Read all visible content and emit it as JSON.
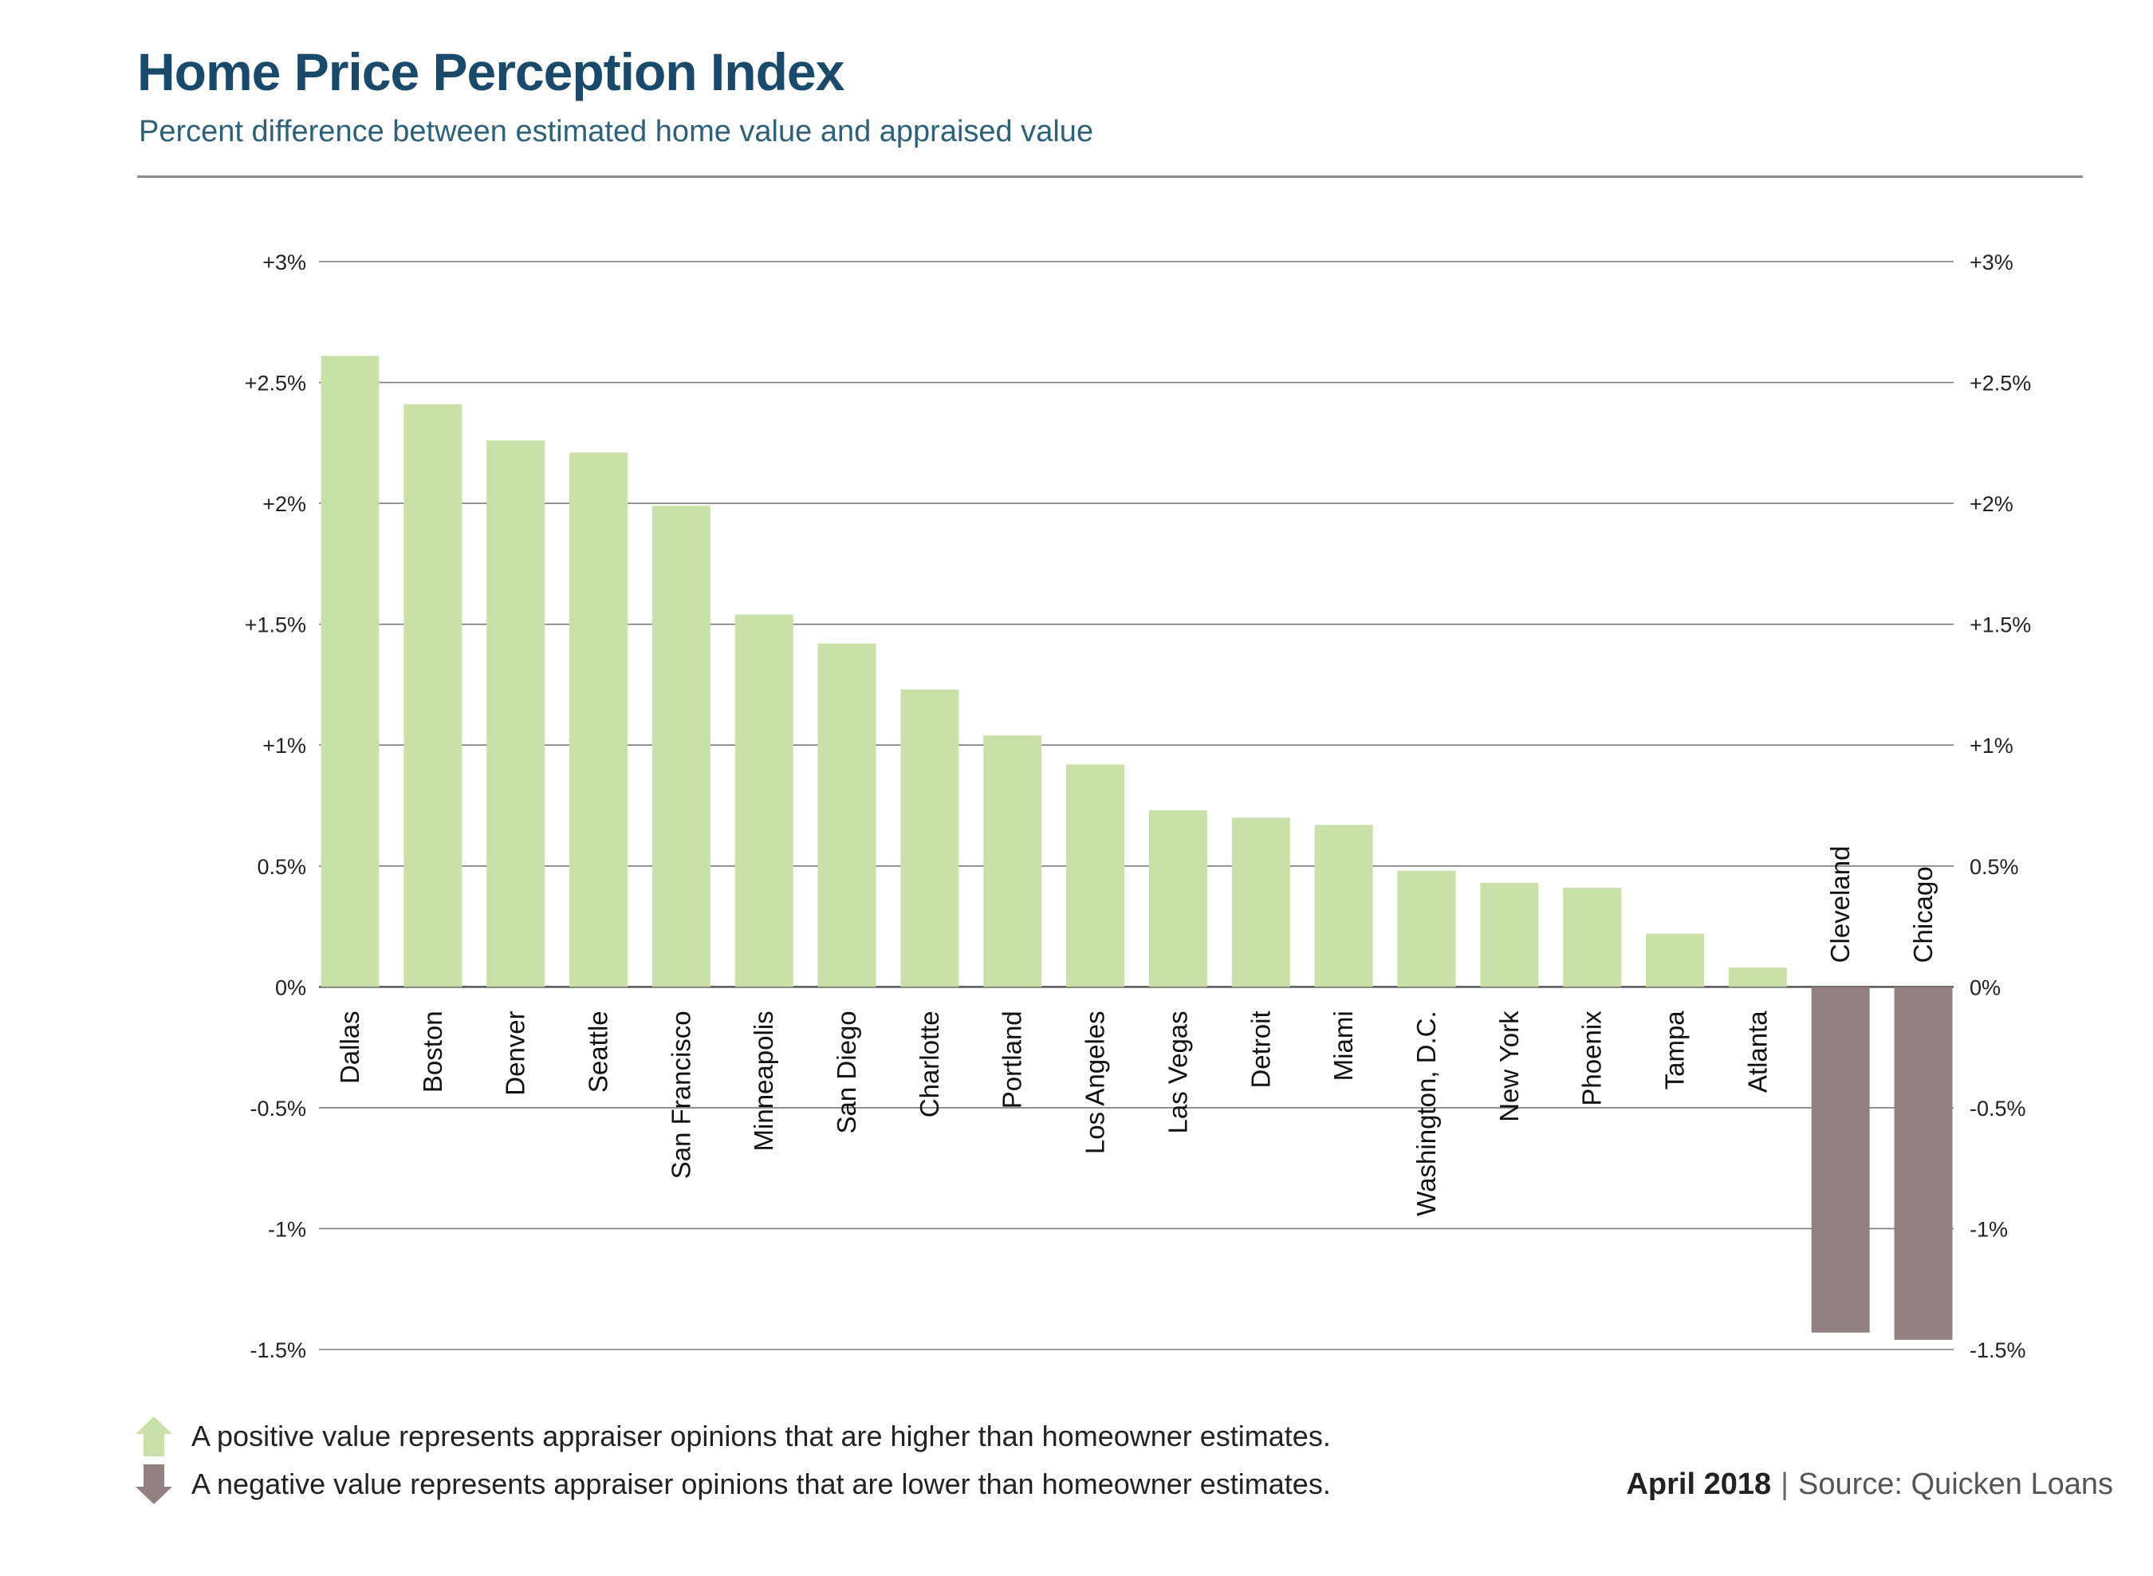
{
  "header": {
    "title": "Home Price Perception Index",
    "subtitle": "Percent difference between estimated home value and appraised value"
  },
  "legend": {
    "positive_text": "A positive value represents appraiser opinions that are higher than homeowner estimates.",
    "negative_text": "A negative value represents appraiser opinions that are lower than homeowner estimates.",
    "positive_icon": "up-arrow-icon",
    "negative_icon": "down-arrow-icon"
  },
  "footer": {
    "date": "April 2018",
    "separator": "|",
    "source": "Source: Quicken Loans"
  },
  "colors": {
    "positive": "#c9e1a8",
    "negative": "#928180",
    "title": "#1a4a6b",
    "subtitle": "#2d6079",
    "grid": "#7a7a7a"
  },
  "chart_data": {
    "type": "bar",
    "categories": [
      "Dallas",
      "Boston",
      "Denver",
      "Seattle",
      "San Francisco",
      "Minneapolis",
      "San Diego",
      "Charlotte",
      "Portland",
      "Los Angeles",
      "Las Vegas",
      "Detroit",
      "Miami",
      "Washington, D.C.",
      "New York",
      "Phoenix",
      "Tampa",
      "Atlanta",
      "Cleveland",
      "Chicago"
    ],
    "values": [
      2.61,
      2.41,
      2.26,
      2.21,
      1.99,
      1.54,
      1.42,
      1.23,
      1.04,
      0.92,
      0.73,
      0.7,
      0.67,
      0.48,
      0.43,
      0.41,
      0.22,
      0.08,
      -1.43,
      -1.46
    ],
    "ylim": [
      -1.5,
      3
    ],
    "yticks": [
      3,
      2.5,
      2,
      1.5,
      1,
      0.5,
      0,
      -0.5,
      -1,
      -1.5
    ],
    "ytick_labels": [
      "+3%",
      "+2.5%",
      "+2%",
      "+1.5%",
      "+1%",
      "0.5%",
      "0%",
      "-0.5%",
      "-1%",
      "-1.5%"
    ],
    "grid": true,
    "axes": "left and right",
    "xlabel": "",
    "ylabel": ""
  }
}
